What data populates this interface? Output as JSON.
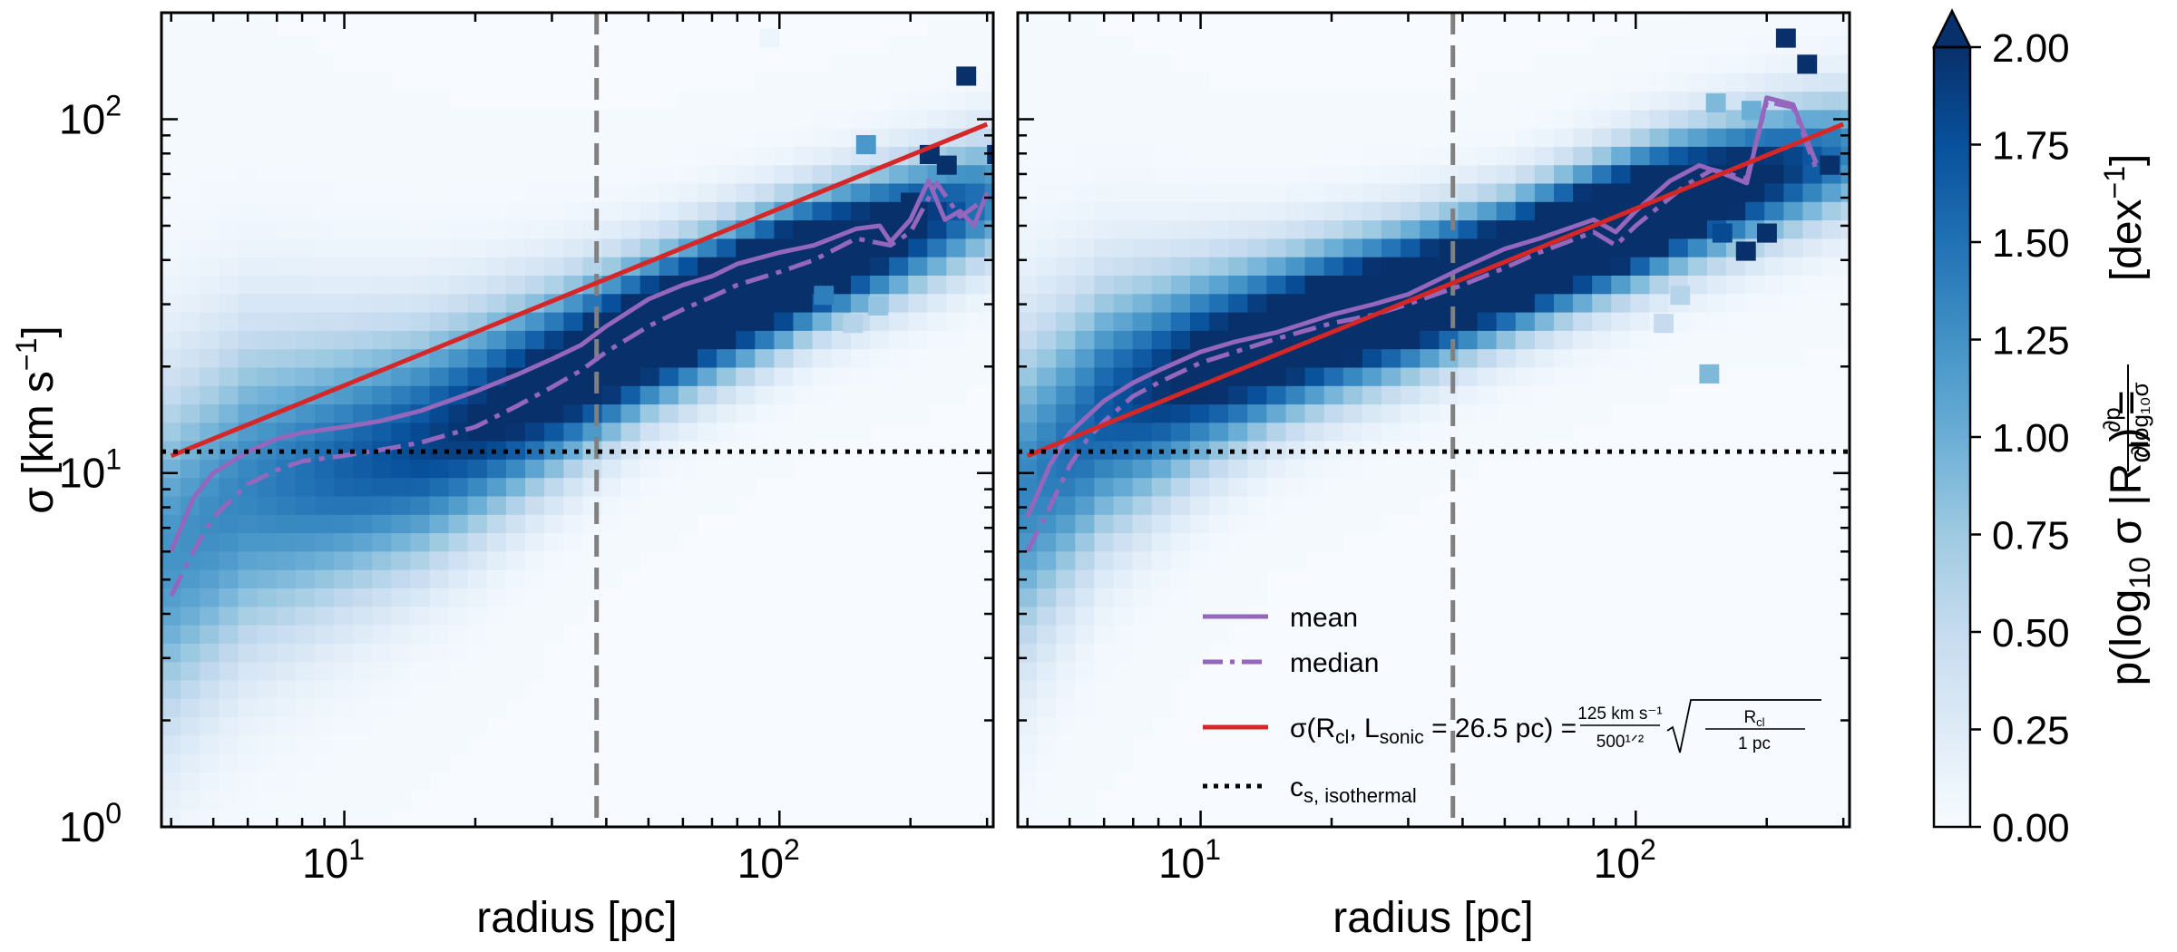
{
  "chart_data": [
    {
      "type": "heatmap",
      "panel": "left",
      "xscale": "log",
      "yscale": "log",
      "xlim": [
        3.8,
        310
      ],
      "ylim": [
        1,
        200
      ],
      "xlabel": "radius [pc]",
      "ylabel": "σ [km s⁻¹]",
      "x_tick_labels": [
        {
          "value": 10,
          "base": "10",
          "exp": "1"
        },
        {
          "value": 100,
          "base": "10",
          "exp": "2"
        }
      ],
      "y_tick_labels": [
        {
          "value": 1,
          "base": "10",
          "exp": "0"
        },
        {
          "value": 10,
          "base": "10",
          "exp": "1"
        },
        {
          "value": 100,
          "base": "10",
          "exp": "2"
        }
      ],
      "density_ridge": {
        "radius": [
          4,
          6,
          10,
          15,
          20,
          30,
          50,
          80,
          120,
          200,
          300
        ],
        "sigma_peak": [
          6,
          9,
          10.5,
          12,
          14,
          18,
          25,
          32,
          40,
          50,
          60
        ],
        "width_dex": [
          0.33,
          0.3,
          0.25,
          0.22,
          0.2,
          0.17,
          0.14,
          0.13,
          0.12,
          0.12,
          0.12
        ]
      },
      "sparse_cells": [
        {
          "x": 255,
          "y": 125,
          "v": 2.0
        },
        {
          "x": 230,
          "y": 70,
          "v": 2.0
        },
        {
          "x": 210,
          "y": 75,
          "v": 2.0
        },
        {
          "x": 300,
          "y": 75,
          "v": 2.0
        },
        {
          "x": 190,
          "y": 55,
          "v": 2.0
        },
        {
          "x": 150,
          "y": 80,
          "v": 1.2
        },
        {
          "x": 160,
          "y": 28,
          "v": 0.8
        },
        {
          "x": 140,
          "y": 25,
          "v": 0.6
        },
        {
          "x": 120,
          "y": 30,
          "v": 1.4
        },
        {
          "x": 170,
          "y": 45,
          "v": 2.0
        },
        {
          "x": 90,
          "y": 160,
          "v": 0.1
        }
      ],
      "series": [
        {
          "name": "mean",
          "color": "#9467bd",
          "style": "solid",
          "x": [
            4,
            4.5,
            5,
            6,
            7,
            8,
            10,
            12,
            15,
            20,
            25,
            30,
            35,
            40,
            50,
            60,
            70,
            80,
            100,
            120,
            150,
            170,
            180,
            200,
            220,
            240,
            260,
            280,
            300
          ],
          "y": [
            6.0,
            8.5,
            10.0,
            11.5,
            12.5,
            13.0,
            13.5,
            14.0,
            15.0,
            17.0,
            19.0,
            21.0,
            23.0,
            26.0,
            31.0,
            34.0,
            36.0,
            39.0,
            42.0,
            44.0,
            49.0,
            50.0,
            45.0,
            52.0,
            67.0,
            52.0,
            55.0,
            50.0,
            62.0
          ]
        },
        {
          "name": "median",
          "color": "#9467bd",
          "style": "dashdot",
          "x": [
            4,
            4.5,
            5,
            6,
            7,
            8,
            10,
            12,
            15,
            20,
            25,
            30,
            35,
            40,
            50,
            60,
            70,
            80,
            100,
            120,
            150,
            180,
            200,
            230,
            260,
            300
          ],
          "y": [
            4.5,
            6.0,
            7.5,
            9.3,
            10.2,
            10.8,
            11.2,
            11.6,
            12.2,
            13.5,
            15.5,
            17.5,
            19.5,
            22.0,
            26.0,
            29.0,
            31.5,
            34.0,
            37.0,
            40.0,
            46.0,
            44.0,
            48.0,
            66.0,
            53.0,
            60.0
          ]
        },
        {
          "name": "σ(R_cl, L_sonic = 26.5 pc)",
          "color": "#d62728",
          "style": "solid",
          "x": [
            4,
            300
          ],
          "y": [
            11.18,
            96.8
          ]
        },
        {
          "name": "c_s, isothermal",
          "color": "#000000",
          "style": "dotted",
          "x": [
            3.8,
            310
          ],
          "y": [
            11.5,
            11.5
          ]
        }
      ],
      "vline": {
        "x": 38,
        "color": "#808080",
        "style": "dashed"
      }
    },
    {
      "type": "heatmap",
      "panel": "right",
      "xscale": "log",
      "yscale": "log",
      "xlim": [
        3.8,
        310
      ],
      "ylim": [
        1,
        200
      ],
      "xlabel": "radius [pc]",
      "ylabel": "",
      "x_tick_labels": [
        {
          "value": 10,
          "base": "10",
          "exp": "1"
        },
        {
          "value": 100,
          "base": "10",
          "exp": "2"
        }
      ],
      "density_ridge": {
        "radius": [
          4,
          6,
          10,
          15,
          20,
          30,
          50,
          80,
          120,
          200,
          300
        ],
        "sigma_peak": [
          9,
          15,
          20,
          24,
          27,
          31,
          38,
          48,
          58,
          70,
          80
        ],
        "width_dex": [
          0.3,
          0.24,
          0.18,
          0.15,
          0.14,
          0.13,
          0.12,
          0.12,
          0.12,
          0.12,
          0.12
        ]
      },
      "sparse_cells": [
        {
          "x": 210,
          "y": 160,
          "v": 2.0
        },
        {
          "x": 235,
          "y": 135,
          "v": 2.0
        },
        {
          "x": 175,
          "y": 100,
          "v": 1.0
        },
        {
          "x": 145,
          "y": 105,
          "v": 0.9
        },
        {
          "x": 265,
          "y": 70,
          "v": 2.0
        },
        {
          "x": 190,
          "y": 45,
          "v": 2.0
        },
        {
          "x": 170,
          "y": 40,
          "v": 2.0
        },
        {
          "x": 150,
          "y": 45,
          "v": 1.8
        },
        {
          "x": 140,
          "y": 18,
          "v": 0.9
        },
        {
          "x": 120,
          "y": 30,
          "v": 0.6
        },
        {
          "x": 110,
          "y": 25,
          "v": 0.5
        }
      ],
      "series": [
        {
          "name": "mean",
          "color": "#9467bd",
          "style": "solid",
          "x": [
            4,
            4.5,
            5,
            5.5,
            6,
            7,
            8,
            10,
            12,
            15,
            20,
            25,
            30,
            40,
            50,
            60,
            80,
            90,
            100,
            120,
            140,
            160,
            180,
            200,
            230,
            260
          ],
          "y": [
            7.5,
            10.5,
            13.0,
            14.5,
            16.0,
            18.0,
            19.5,
            22.0,
            23.5,
            25.0,
            28.0,
            30.0,
            32.0,
            38.0,
            43.0,
            46.0,
            52.0,
            48.0,
            55.0,
            67.0,
            74.0,
            70.0,
            66.0,
            115.0,
            110.0,
            75.0
          ]
        },
        {
          "name": "median",
          "color": "#9467bd",
          "style": "dashdot",
          "x": [
            4,
            4.5,
            5,
            5.5,
            6,
            7,
            8,
            10,
            12,
            15,
            20,
            25,
            30,
            40,
            50,
            60,
            80,
            90,
            100,
            110,
            130,
            150,
            180,
            200,
            230,
            260
          ],
          "y": [
            6.0,
            8.0,
            10.5,
            12.5,
            14.0,
            16.5,
            18.0,
            20.5,
            22.0,
            24.0,
            26.5,
            28.0,
            30.0,
            34.0,
            38.0,
            42.0,
            48.0,
            44.0,
            50.0,
            55.0,
            65.0,
            72.0,
            68.0,
            112.0,
            108.0,
            72.0
          ]
        },
        {
          "name": "σ(R_cl, L_sonic = 26.5 pc)",
          "color": "#d62728",
          "style": "solid",
          "x": [
            4,
            300
          ],
          "y": [
            11.18,
            96.8
          ]
        },
        {
          "name": "c_s, isothermal",
          "color": "#000000",
          "style": "dotted",
          "x": [
            3.8,
            310
          ],
          "y": [
            11.5,
            11.5
          ]
        }
      ],
      "vline": {
        "x": 38,
        "color": "#808080",
        "style": "dashed"
      }
    }
  ],
  "legend": {
    "placement": "lower-right of right panel",
    "entries": [
      {
        "label": "mean",
        "color": "#9467bd",
        "style": "solid"
      },
      {
        "label": "median",
        "color": "#9467bd",
        "style": "dashdot"
      },
      {
        "label": "σ(R",
        "label_sub": "cl",
        "label_mid": ", L",
        "label_sub2": "sonic",
        "label_end": " = 26.5 pc) =",
        "frac_num": "125 km s⁻¹",
        "frac_den": "500¹ᐟ²",
        "sqrt_num": "R",
        "sqrt_num_sub": "cl",
        "sqrt_den": "1 pc",
        "color": "#d62728",
        "style": "solid"
      },
      {
        "label": "c",
        "label_sub": "s, isothermal",
        "color": "#000000",
        "style": "dotted"
      }
    ]
  },
  "colorbar": {
    "cmap": "Blues",
    "vmin": 0.0,
    "vmax": 2.0,
    "extend": "max",
    "ticks": [
      "0.00",
      "0.25",
      "0.50",
      "0.75",
      "1.00",
      "1.25",
      "1.50",
      "1.75",
      "2.00"
    ],
    "label_main": "p(log",
    "label_sub10": "10",
    "label_sigma": " σ |R",
    "label_sub_cl": "cl",
    "label_eq": ") =",
    "label_frac_num": "∂p",
    "label_frac_den": "∂log₁₀σ",
    "label_unit": "[dex",
    "label_unit_exp": "−1",
    "label_unit_close": "]"
  },
  "colors": {
    "cmap_stops": [
      "#f7fbff",
      "#deebf7",
      "#c6dbef",
      "#9ecae1",
      "#6baed6",
      "#4292c6",
      "#2171b5",
      "#08519c",
      "#08306b"
    ]
  }
}
